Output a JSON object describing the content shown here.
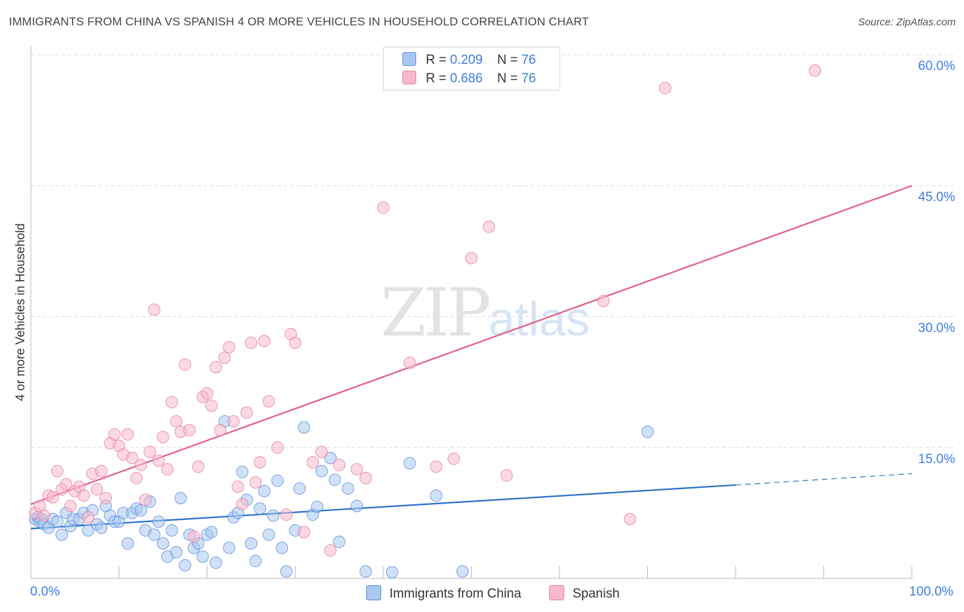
{
  "title": "IMMIGRANTS FROM CHINA VS SPANISH 4 OR MORE VEHICLES IN HOUSEHOLD CORRELATION CHART",
  "source": "Source: ZipAtlas.com",
  "watermark": {
    "zip": "ZIP",
    "atlas": "atlas"
  },
  "legend": {
    "r_label": "R =",
    "n_label": "N =",
    "series": [
      {
        "name": "Immigrants from China",
        "r": "0.209",
        "n": "76",
        "color": "#a9c8f0",
        "border": "#5b8fd6",
        "line": "#2b72c9"
      },
      {
        "name": "Spanish",
        "r": "0.686",
        "n": "76",
        "color": "#f7b9cc",
        "border": "#e67fa0",
        "line": "#e0608a"
      }
    ]
  },
  "chart_data": {
    "type": "scatter",
    "title": "IMMIGRANTS FROM CHINA VS SPANISH 4 OR MORE VEHICLES IN HOUSEHOLD CORRELATION CHART",
    "xlabel": "",
    "ylabel": "4 or more Vehicles in Household",
    "xlim": [
      0,
      100
    ],
    "ylim": [
      0,
      60
    ],
    "x_tick_labels": [
      "0.0%",
      "100.0%"
    ],
    "y_ticks": [
      15,
      30,
      45,
      60
    ],
    "y_tick_labels": [
      "15.0%",
      "30.0%",
      "45.0%",
      "60.0%"
    ],
    "series": [
      {
        "name": "Immigrants from China",
        "trend": {
          "x0": 0,
          "y0": 5.7,
          "x1": 80,
          "y1": 10.7,
          "dash_to_x": 100,
          "dash_to_y": 12.0
        },
        "points": [
          [
            0.5,
            6.8
          ],
          [
            0.8,
            7.0
          ],
          [
            1,
            6.5
          ],
          [
            1.2,
            6.8
          ],
          [
            1.5,
            6.2
          ],
          [
            2,
            5.8
          ],
          [
            2.5,
            6.8
          ],
          [
            3,
            6.5
          ],
          [
            3.5,
            5.0
          ],
          [
            4,
            7.5
          ],
          [
            4.5,
            6.0
          ],
          [
            4.8,
            6.8
          ],
          [
            5.5,
            6.8
          ],
          [
            6,
            7.5
          ],
          [
            6.5,
            5.5
          ],
          [
            7,
            7.8
          ],
          [
            7.5,
            6.2
          ],
          [
            8,
            5.8
          ],
          [
            8.5,
            8.3
          ],
          [
            9,
            7.2
          ],
          [
            9.5,
            6.5
          ],
          [
            10,
            6.5
          ],
          [
            10.5,
            7.5
          ],
          [
            11,
            4.0
          ],
          [
            11.5,
            7.5
          ],
          [
            12,
            8.0
          ],
          [
            12.5,
            7.8
          ],
          [
            13,
            5.5
          ],
          [
            13.5,
            8.8
          ],
          [
            14,
            5.0
          ],
          [
            14.5,
            6.5
          ],
          [
            15,
            4.0
          ],
          [
            15.5,
            2.5
          ],
          [
            16,
            5.5
          ],
          [
            16.5,
            3.0
          ],
          [
            17,
            9.2
          ],
          [
            17.5,
            1.5
          ],
          [
            18,
            5.0
          ],
          [
            18.5,
            3.5
          ],
          [
            19,
            4.0
          ],
          [
            19.5,
            2.5
          ],
          [
            20,
            5.0
          ],
          [
            20.5,
            5.3
          ],
          [
            21,
            1.8
          ],
          [
            22,
            18.0
          ],
          [
            22.5,
            3.5
          ],
          [
            23,
            7.0
          ],
          [
            23.5,
            7.5
          ],
          [
            24,
            12.2
          ],
          [
            24.5,
            9.0
          ],
          [
            25,
            4.0
          ],
          [
            25.5,
            2.0
          ],
          [
            26,
            8.0
          ],
          [
            26.5,
            10.0
          ],
          [
            27,
            5.0
          ],
          [
            27.5,
            7.2
          ],
          [
            28,
            11.2
          ],
          [
            28.5,
            3.5
          ],
          [
            29,
            0.8
          ],
          [
            30,
            5.5
          ],
          [
            30.5,
            10.3
          ],
          [
            31,
            17.3
          ],
          [
            32,
            7.3
          ],
          [
            32.5,
            8.2
          ],
          [
            33,
            12.3
          ],
          [
            34,
            13.8
          ],
          [
            34.5,
            11.3
          ],
          [
            35,
            4.2
          ],
          [
            36,
            10.3
          ],
          [
            37,
            8.3
          ],
          [
            38,
            0.8
          ],
          [
            41,
            0.7
          ],
          [
            43,
            13.2
          ],
          [
            46,
            9.5
          ],
          [
            49,
            0.8
          ],
          [
            70,
            16.8
          ]
        ]
      },
      {
        "name": "Spanish",
        "trend": {
          "x0": 0,
          "y0": 8.5,
          "x1": 100,
          "y1": 45.0
        },
        "points": [
          [
            0.5,
            7.5
          ],
          [
            1,
            8.3
          ],
          [
            1.5,
            7.2
          ],
          [
            2,
            9.5
          ],
          [
            2.5,
            9.3
          ],
          [
            3,
            12.3
          ],
          [
            3.5,
            10.2
          ],
          [
            4,
            10.8
          ],
          [
            4.5,
            8.3
          ],
          [
            5,
            10.0
          ],
          [
            5.5,
            10.5
          ],
          [
            6,
            9.5
          ],
          [
            6.5,
            7.0
          ],
          [
            7,
            12.0
          ],
          [
            7.5,
            10.2
          ],
          [
            8,
            12.3
          ],
          [
            8.5,
            9.2
          ],
          [
            9,
            15.5
          ],
          [
            9.5,
            16.5
          ],
          [
            10,
            15.2
          ],
          [
            10.5,
            14.2
          ],
          [
            11,
            16.5
          ],
          [
            11.5,
            13.8
          ],
          [
            12,
            11.5
          ],
          [
            12.5,
            13.0
          ],
          [
            13,
            9.0
          ],
          [
            13.5,
            14.5
          ],
          [
            14,
            30.8
          ],
          [
            14.5,
            13.5
          ],
          [
            15,
            16.2
          ],
          [
            15.5,
            12.5
          ],
          [
            16,
            20.2
          ],
          [
            16.5,
            18.0
          ],
          [
            17,
            16.8
          ],
          [
            17.5,
            24.5
          ],
          [
            18,
            17.0
          ],
          [
            18.5,
            4.8
          ],
          [
            19,
            12.8
          ],
          [
            19.5,
            20.8
          ],
          [
            20,
            21.2
          ],
          [
            20.5,
            19.8
          ],
          [
            21,
            24.2
          ],
          [
            21.5,
            17.0
          ],
          [
            22,
            25.3
          ],
          [
            22.5,
            26.5
          ],
          [
            23,
            18.0
          ],
          [
            23.5,
            10.5
          ],
          [
            24,
            8.5
          ],
          [
            24.5,
            19.0
          ],
          [
            25,
            27.0
          ],
          [
            25.5,
            11.0
          ],
          [
            26,
            13.3
          ],
          [
            26.5,
            27.2
          ],
          [
            27,
            20.3
          ],
          [
            28,
            15.0
          ],
          [
            29,
            7.3
          ],
          [
            29.5,
            28.0
          ],
          [
            30,
            27.0
          ],
          [
            31,
            5.3
          ],
          [
            32,
            13.3
          ],
          [
            33,
            14.5
          ],
          [
            34,
            3.2
          ],
          [
            35,
            13.0
          ],
          [
            37,
            12.5
          ],
          [
            38,
            11.5
          ],
          [
            40,
            42.5
          ],
          [
            43,
            24.7
          ],
          [
            46,
            12.8
          ],
          [
            48,
            13.7
          ],
          [
            50,
            36.7
          ],
          [
            52,
            40.3
          ],
          [
            54,
            11.8
          ],
          [
            65,
            31.8
          ],
          [
            68,
            6.8
          ],
          [
            72,
            56.2
          ],
          [
            89,
            58.2
          ]
        ]
      }
    ]
  }
}
